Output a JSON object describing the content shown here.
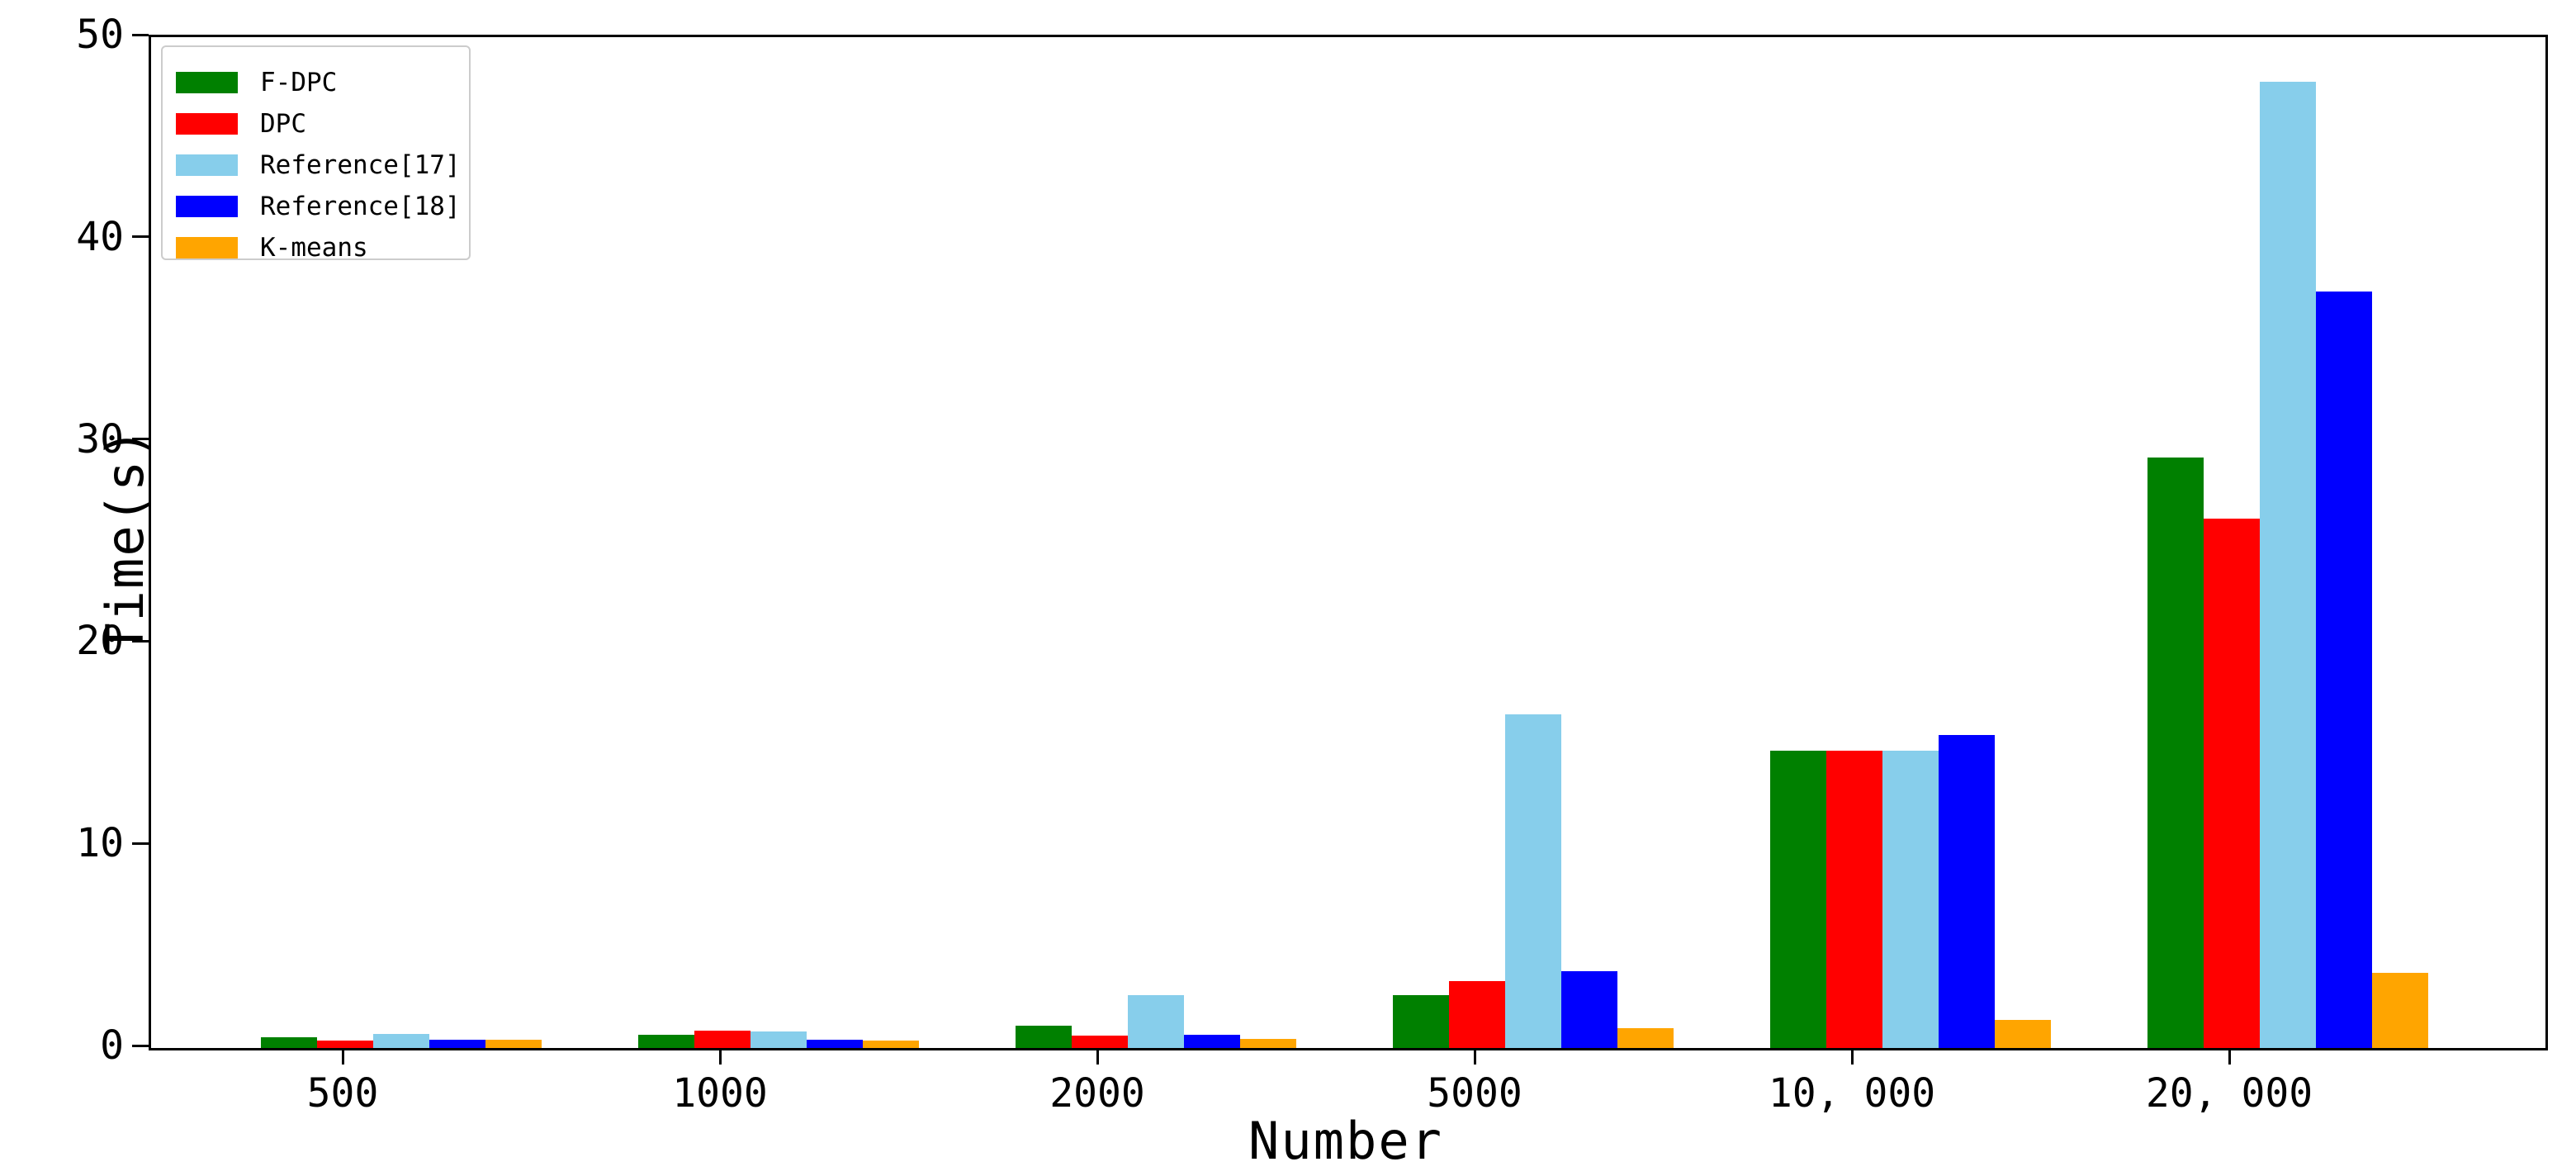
{
  "chart_data": {
    "type": "bar",
    "title": "",
    "xlabel": "Number",
    "ylabel": "Time(s)",
    "categories": [
      "500",
      "1000",
      "2000",
      "5000",
      "10, 000",
      "20, 000"
    ],
    "series": [
      {
        "name": "F-DPC",
        "color": "#008000",
        "values": [
          0.55,
          0.65,
          1.1,
          2.6,
          14.7,
          29.2
        ]
      },
      {
        "name": "DPC",
        "color": "#ff0000",
        "values": [
          0.35,
          0.85,
          0.6,
          3.3,
          14.7,
          26.2
        ]
      },
      {
        "name": "Reference[17]",
        "color": "#87ceeb",
        "values": [
          0.7,
          0.8,
          2.6,
          16.5,
          14.7,
          47.8
        ]
      },
      {
        "name": "Reference[18]",
        "color": "#0000ff",
        "values": [
          0.4,
          0.42,
          0.65,
          3.8,
          15.5,
          37.4
        ]
      },
      {
        "name": "K-means",
        "color": "#ffa500",
        "values": [
          0.4,
          0.38,
          0.45,
          1.0,
          1.4,
          3.7
        ]
      }
    ],
    "ylim": [
      0,
      50
    ],
    "yticks": [
      0,
      10,
      20,
      30,
      40,
      50
    ],
    "legend_position": "upper left",
    "grid": false,
    "axis_color": "#000000"
  }
}
